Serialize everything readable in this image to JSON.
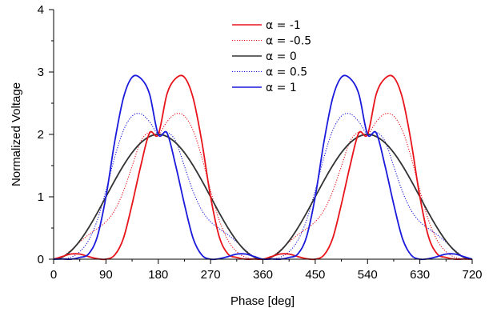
{
  "chart_data": {
    "type": "line",
    "title": "",
    "xlabel": "Phase [deg]",
    "ylabel": "Normalized Voltage",
    "xlim": [
      0,
      720
    ],
    "ylim": [
      0,
      4
    ],
    "xticks": [
      0,
      90,
      180,
      270,
      360,
      450,
      540,
      630,
      720
    ],
    "yticks": [
      0,
      1,
      2,
      3,
      4
    ],
    "legend_position": "top-center",
    "grid": false,
    "x": [
      0,
      15,
      30,
      45,
      60,
      75,
      90,
      105,
      120,
      135,
      150,
      165,
      180,
      195,
      210,
      225,
      240,
      255,
      270,
      285,
      300,
      315,
      330,
      345,
      360,
      375,
      390,
      405,
      420,
      435,
      450,
      465,
      480,
      495,
      510,
      525,
      540,
      555,
      570,
      585,
      600,
      615,
      630,
      645,
      660,
      675,
      690,
      705,
      720
    ],
    "series": [
      {
        "name": "α = -1",
        "color": "#e8141b",
        "dash": "solid",
        "values": [
          0.0,
          0.043,
          0.083,
          0.082,
          0.042,
          0.008,
          0.0,
          0.066,
          0.333,
          0.881,
          1.5,
          2.024,
          2.0,
          2.647,
          2.897,
          2.916,
          2.583,
          1.88,
          1.0,
          0.357,
          0.083,
          0.028,
          0.0,
          0.003,
          0.0,
          0.043,
          0.083,
          0.082,
          0.042,
          0.008,
          0.0,
          0.066,
          0.333,
          0.881,
          1.5,
          2.024,
          2.0,
          2.647,
          2.897,
          2.916,
          2.583,
          1.88,
          1.0,
          0.357,
          0.083,
          0.028,
          0.0,
          0.003,
          0.0
        ]
      },
      {
        "name": "α = -0.5",
        "color": "#e8141b",
        "dash": "dotted",
        "values": [
          0.0,
          0.041,
          0.146,
          0.275,
          0.391,
          0.489,
          0.6,
          0.783,
          1.085,
          1.49,
          1.891,
          2.034,
          2.0,
          2.203,
          2.33,
          2.294,
          2.062,
          1.632,
          1.1,
          0.623,
          0.3,
          0.12,
          0.031,
          0.002,
          0.0,
          0.041,
          0.146,
          0.275,
          0.391,
          0.489,
          0.6,
          0.783,
          1.085,
          1.49,
          1.891,
          2.034,
          2.0,
          2.203,
          2.33,
          2.294,
          2.062,
          1.632,
          1.1,
          0.623,
          0.3,
          0.12,
          0.031,
          0.002,
          0.0
        ]
      },
      {
        "name": "α = 0",
        "color": "#333333",
        "dash": "solid",
        "values": [
          0.0,
          0.034,
          0.134,
          0.293,
          0.5,
          0.741,
          1.0,
          1.259,
          1.5,
          1.707,
          1.866,
          1.966,
          2.0,
          1.966,
          1.866,
          1.707,
          1.5,
          1.259,
          1.0,
          0.741,
          0.5,
          0.293,
          0.134,
          0.034,
          0.0,
          0.034,
          0.134,
          0.293,
          0.5,
          0.741,
          1.0,
          1.259,
          1.5,
          1.707,
          1.866,
          1.966,
          2.0,
          1.966,
          1.866,
          1.707,
          1.5,
          1.259,
          1.0,
          0.741,
          0.5,
          0.293,
          0.134,
          0.034,
          0.0
        ]
      },
      {
        "name": "α = 0.5",
        "color": "#1a1adc",
        "dash": "dotted",
        "values": [
          0.0,
          0.002,
          0.031,
          0.12,
          0.3,
          0.623,
          1.1,
          1.632,
          2.062,
          2.294,
          2.33,
          2.203,
          2.0,
          2.034,
          1.891,
          1.49,
          1.085,
          0.783,
          0.6,
          0.489,
          0.391,
          0.275,
          0.146,
          0.041,
          0.0,
          0.002,
          0.031,
          0.12,
          0.3,
          0.623,
          1.1,
          1.632,
          2.062,
          2.294,
          2.33,
          2.203,
          2.0,
          2.034,
          1.891,
          1.49,
          1.085,
          0.783,
          0.6,
          0.489,
          0.391,
          0.275,
          0.146,
          0.041,
          0.0
        ]
      },
      {
        "name": "α = 1",
        "color": "#1a1adc",
        "dash": "solid",
        "values": [
          0.0,
          0.003,
          0.0,
          0.028,
          0.083,
          0.357,
          1.0,
          1.88,
          2.583,
          2.916,
          2.897,
          2.647,
          2.0,
          2.024,
          1.5,
          0.881,
          0.333,
          0.066,
          0.0,
          0.008,
          0.042,
          0.082,
          0.083,
          0.043,
          0.0,
          0.003,
          0.0,
          0.028,
          0.083,
          0.357,
          1.0,
          1.88,
          2.583,
          2.916,
          2.897,
          2.647,
          2.0,
          2.024,
          1.5,
          0.881,
          0.333,
          0.066,
          0.0,
          0.008,
          0.042,
          0.082,
          0.083,
          0.043,
          0.0
        ]
      }
    ]
  }
}
